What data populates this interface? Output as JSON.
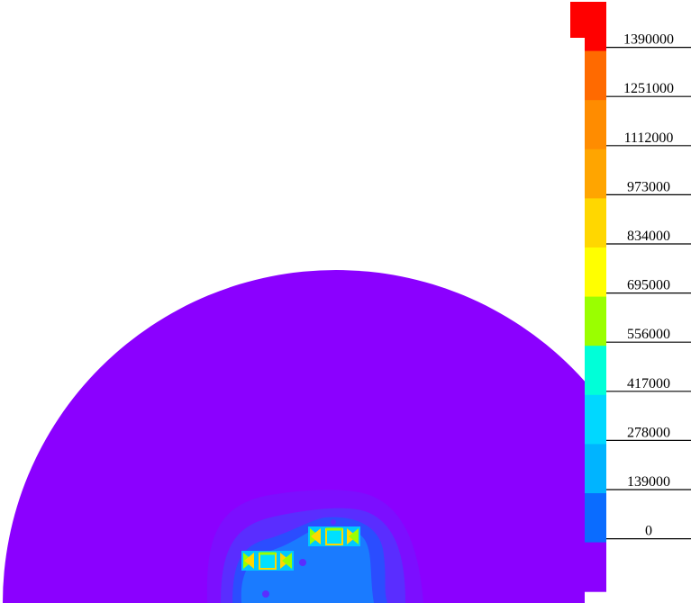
{
  "colorbar": {
    "labels": [
      "1390000",
      "1251000",
      "1112000",
      "973000",
      "834000",
      "695000",
      "556000",
      "417000",
      "278000",
      "139000",
      "0"
    ],
    "colors": [
      "#ff0000",
      "#ff6a00",
      "#ff8c00",
      "#ffa500",
      "#ffd700",
      "#ffff00",
      "#9aff00",
      "#00ffd8",
      "#00d8ff",
      "#00b4ff",
      "#0a6cff",
      "#8b00ff"
    ]
  },
  "field": {
    "background_color": "#8b00ff",
    "halo_colors": [
      "#7a10ff",
      "#5a2dff",
      "#2b4dff",
      "#1a7bff"
    ]
  }
}
